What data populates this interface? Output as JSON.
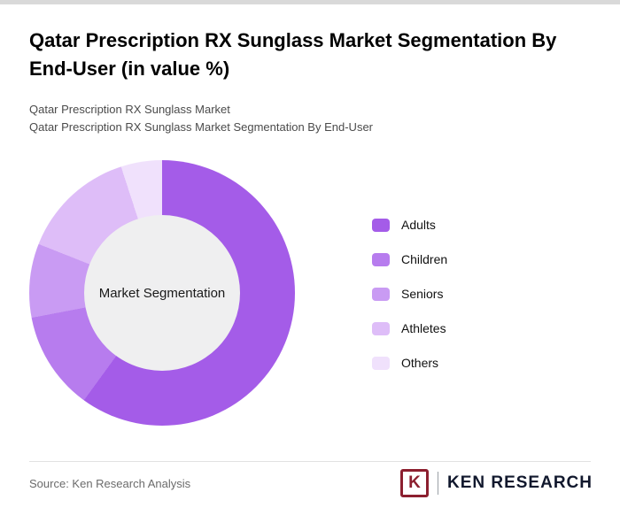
{
  "header": {
    "title": "Qatar Prescription RX Sunglass Market Segmentation By End-User (in value %)",
    "subtitle1": "Qatar Prescription RX Sunglass Market",
    "subtitle2": "Qatar Prescription RX Sunglass Market Segmentation By End-User"
  },
  "chart_data": {
    "type": "pie",
    "variant": "donut",
    "title": "Qatar Prescription RX Sunglass Market Segmentation By End-User (in value %)",
    "center_label": "Market Segmentation",
    "categories": [
      "Adults",
      "Children",
      "Seniors",
      "Athletes",
      "Others"
    ],
    "values": [
      60,
      12,
      9,
      14,
      5
    ],
    "unit": "percent (estimated from arc angles, no data labels shown)",
    "colors": [
      "#a45ce8",
      "#b77cee",
      "#c99bf3",
      "#debdf8",
      "#f0e1fc"
    ],
    "center_color": "#efeff0",
    "legend_position": "right",
    "start_angle_deg": 0,
    "direction": "clockwise"
  },
  "footer": {
    "source": "Source: Ken Research Analysis",
    "logo_letter": "K",
    "logo_text": "KEN RESEARCH",
    "logo_color": "#8c1f2f"
  }
}
